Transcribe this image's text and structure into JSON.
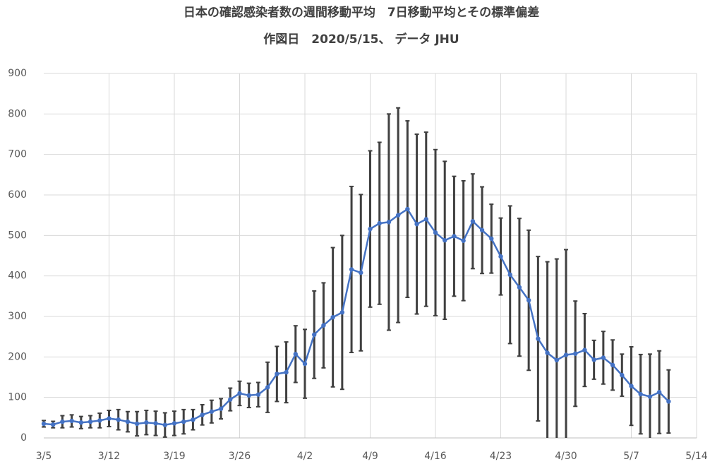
{
  "chart_data": {
    "type": "line",
    "title": "日本の確認感染者数の週間移動平均　7日移動平均とその標準偏差",
    "subtitle": "作図日　2020/5/15、 データ JHU",
    "categories": [
      "3/5",
      null,
      null,
      null,
      null,
      null,
      null,
      "3/12",
      null,
      null,
      null,
      null,
      null,
      null,
      "3/19",
      null,
      null,
      null,
      null,
      null,
      null,
      "3/26",
      null,
      null,
      null,
      null,
      null,
      null,
      "4/2",
      null,
      null,
      null,
      null,
      null,
      null,
      "4/9",
      null,
      null,
      null,
      null,
      null,
      null,
      "4/16",
      null,
      null,
      null,
      null,
      null,
      null,
      "4/23",
      null,
      null,
      null,
      null,
      null,
      null,
      "4/30",
      null,
      null,
      null,
      null,
      null,
      null,
      "5/7",
      null,
      null,
      null,
      null,
      null,
      null,
      "5/14"
    ],
    "series": [
      {
        "color": "#4472c4",
        "values": [
          35,
          33,
          40,
          42,
          38,
          40,
          43,
          48,
          45,
          40,
          35,
          38,
          36,
          32,
          36,
          40,
          45,
          57,
          65,
          72,
          95,
          110,
          105,
          107,
          125,
          158,
          162,
          207,
          183,
          255,
          278,
          298,
          310,
          416,
          408,
          516,
          530,
          533,
          550,
          565,
          528,
          540,
          507,
          488,
          498,
          487,
          535,
          513,
          492,
          448,
          403,
          372,
          340,
          245,
          210,
          192,
          205,
          208,
          217,
          193,
          198,
          180,
          155,
          128,
          108,
          102,
          113,
          90,
          null,
          null,
          null
        ],
        "errors": [
          8,
          8,
          15,
          15,
          15,
          15,
          18,
          20,
          25,
          25,
          30,
          30,
          30,
          30,
          30,
          30,
          25,
          25,
          28,
          25,
          28,
          30,
          30,
          30,
          62,
          68,
          75,
          70,
          85,
          108,
          105,
          172,
          190,
          205,
          193,
          193,
          200,
          267,
          265,
          218,
          222,
          215,
          205,
          195,
          148,
          148,
          117,
          107,
          85,
          95,
          170,
          170,
          173,
          203,
          225,
          250,
          260,
          130,
          90,
          48,
          65,
          62,
          52,
          97,
          98,
          105,
          102,
          78,
          null,
          null,
          null
        ],
        "error_color": "#404040"
      }
    ],
    "ylim": [
      0,
      900
    ],
    "yticks": [
      0,
      100,
      200,
      300,
      400,
      500,
      600,
      700,
      800,
      900
    ],
    "grid": true
  }
}
